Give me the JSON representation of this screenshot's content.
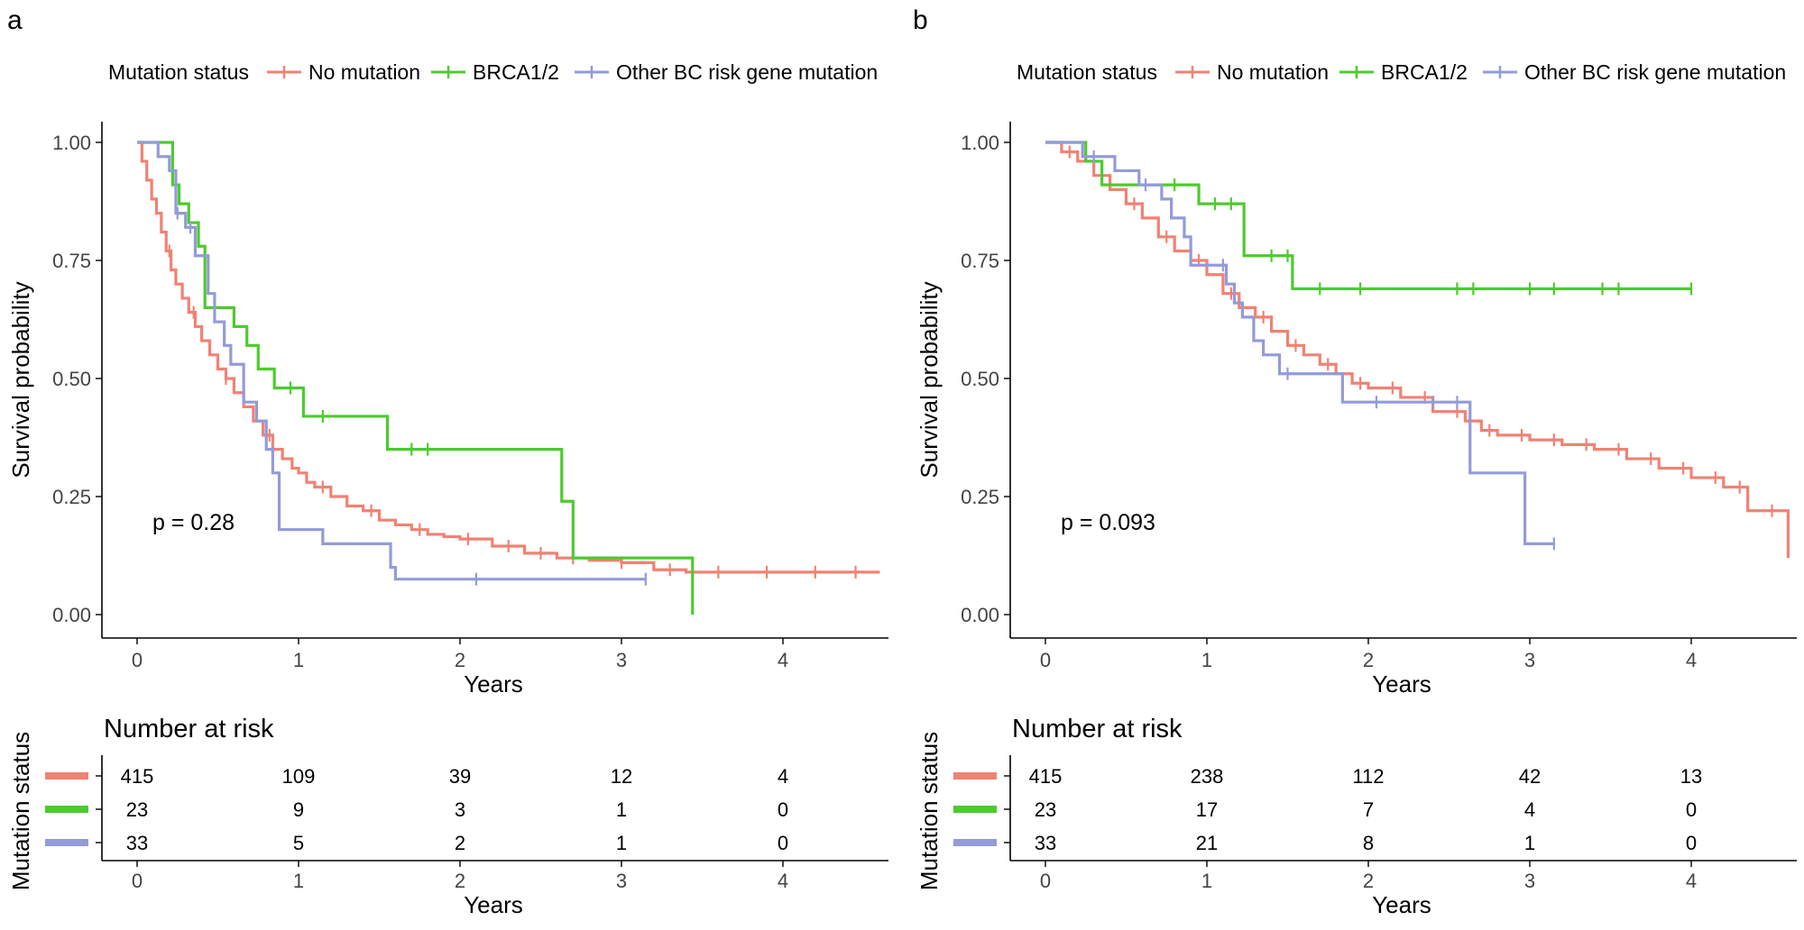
{
  "figure": {
    "panels": [
      "a",
      "b"
    ],
    "legend_title": "Mutation status",
    "series_labels": [
      "No mutation",
      "BRCA1/2",
      "Other BC risk gene mutation"
    ],
    "series_colors": [
      "#F08273",
      "#4CCB2E",
      "#939BD9"
    ]
  },
  "chart_data": [
    {
      "panel": "a",
      "type": "line",
      "subtype": "kaplan-meier",
      "title": "",
      "xlabel": "Years",
      "ylabel": "Survival probability",
      "xlim": [
        0,
        4.6
      ],
      "ylim": [
        0,
        1
      ],
      "xticks": [
        "0",
        "1",
        "2",
        "3",
        "4"
      ],
      "yticks": [
        "0.00",
        "0.25",
        "0.50",
        "0.75",
        "1.00"
      ],
      "pvalue": "p = 0.28",
      "series": [
        {
          "name": "No mutation",
          "x": [
            0,
            0.03,
            0.06,
            0.09,
            0.12,
            0.15,
            0.18,
            0.21,
            0.24,
            0.28,
            0.32,
            0.36,
            0.4,
            0.45,
            0.5,
            0.55,
            0.6,
            0.66,
            0.72,
            0.78,
            0.84,
            0.9,
            0.96,
            1.0,
            1.05,
            1.1,
            1.2,
            1.3,
            1.4,
            1.5,
            1.6,
            1.7,
            1.8,
            1.9,
            2.0,
            2.2,
            2.4,
            2.6,
            2.8,
            3.0,
            3.2,
            3.4,
            4.6
          ],
          "y": [
            1.0,
            0.96,
            0.92,
            0.88,
            0.85,
            0.81,
            0.77,
            0.73,
            0.7,
            0.67,
            0.64,
            0.61,
            0.58,
            0.55,
            0.52,
            0.5,
            0.47,
            0.44,
            0.41,
            0.38,
            0.35,
            0.33,
            0.31,
            0.3,
            0.28,
            0.27,
            0.25,
            0.23,
            0.22,
            0.2,
            0.19,
            0.18,
            0.17,
            0.165,
            0.16,
            0.145,
            0.13,
            0.12,
            0.115,
            0.11,
            0.095,
            0.09,
            0.09
          ],
          "censor_x": [
            0.2,
            0.35,
            0.55,
            0.82,
            1.15,
            1.45,
            1.75,
            2.05,
            2.3,
            2.5,
            2.7,
            3.0,
            3.3,
            3.6,
            3.9,
            4.2,
            4.45
          ]
        },
        {
          "name": "BRCA1/2",
          "x": [
            0,
            0.22,
            0.26,
            0.32,
            0.38,
            0.42,
            0.6,
            0.68,
            0.75,
            0.85,
            1.03,
            1.55,
            2.63,
            2.7,
            3.44
          ],
          "y": [
            1.0,
            0.91,
            0.87,
            0.83,
            0.78,
            0.65,
            0.61,
            0.57,
            0.52,
            0.48,
            0.42,
            0.35,
            0.24,
            0.12,
            0.0
          ],
          "censor_x": [
            0.95,
            1.15,
            1.7,
            1.8
          ]
        },
        {
          "name": "Other BC risk gene mutation",
          "x": [
            0,
            0.13,
            0.2,
            0.24,
            0.3,
            0.36,
            0.44,
            0.48,
            0.54,
            0.58,
            0.66,
            0.74,
            0.8,
            0.84,
            0.88,
            1.15,
            1.57,
            1.6,
            3.15
          ],
          "y": [
            1.0,
            0.97,
            0.94,
            0.85,
            0.82,
            0.76,
            0.68,
            0.62,
            0.57,
            0.53,
            0.45,
            0.41,
            0.35,
            0.3,
            0.18,
            0.15,
            0.1,
            0.075,
            0.075
          ],
          "censor_x": [
            0.25,
            0.33,
            2.1,
            3.15
          ]
        }
      ],
      "risk_table": {
        "title": "Number at risk",
        "ylabel": "Mutation status",
        "xlabel": "Years",
        "time_points": [
          0,
          1,
          2,
          3,
          4
        ],
        "rows": [
          {
            "name": "No mutation",
            "values": [
              415,
              109,
              39,
              12,
              4
            ]
          },
          {
            "name": "BRCA1/2",
            "values": [
              23,
              9,
              3,
              1,
              0
            ]
          },
          {
            "name": "Other BC risk gene mutation",
            "values": [
              33,
              5,
              2,
              1,
              0
            ]
          }
        ]
      }
    },
    {
      "panel": "b",
      "type": "line",
      "subtype": "kaplan-meier",
      "title": "",
      "xlabel": "Years",
      "ylabel": "Survival probability",
      "xlim": [
        0,
        4.6
      ],
      "ylim": [
        0,
        1
      ],
      "xticks": [
        "0",
        "1",
        "2",
        "3",
        "4"
      ],
      "yticks": [
        "0.00",
        "0.25",
        "0.50",
        "0.75",
        "1.00"
      ],
      "pvalue": "p = 0.093",
      "series": [
        {
          "name": "No mutation",
          "x": [
            0,
            0.1,
            0.2,
            0.3,
            0.4,
            0.5,
            0.6,
            0.7,
            0.8,
            0.9,
            1.0,
            1.1,
            1.2,
            1.3,
            1.4,
            1.5,
            1.6,
            1.7,
            1.8,
            1.9,
            2.0,
            2.2,
            2.4,
            2.6,
            2.7,
            2.8,
            3.0,
            3.2,
            3.4,
            3.6,
            3.8,
            4.0,
            4.2,
            4.35,
            4.5,
            4.6
          ],
          "y": [
            1.0,
            0.98,
            0.96,
            0.93,
            0.9,
            0.87,
            0.84,
            0.8,
            0.77,
            0.75,
            0.72,
            0.68,
            0.65,
            0.63,
            0.6,
            0.57,
            0.55,
            0.53,
            0.51,
            0.49,
            0.48,
            0.46,
            0.43,
            0.41,
            0.39,
            0.38,
            0.37,
            0.36,
            0.35,
            0.33,
            0.31,
            0.29,
            0.27,
            0.22,
            0.22,
            0.12
          ],
          "censor_x": [
            0.15,
            0.35,
            0.55,
            0.75,
            0.95,
            1.15,
            1.35,
            1.55,
            1.75,
            1.95,
            2.15,
            2.35,
            2.55,
            2.75,
            2.95,
            3.15,
            3.35,
            3.55,
            3.75,
            3.95,
            4.15,
            4.3,
            4.5
          ]
        },
        {
          "name": "BRCA1/2",
          "x": [
            0,
            0.25,
            0.35,
            0.95,
            1.23,
            1.53,
            4.0
          ],
          "y": [
            1.0,
            0.96,
            0.91,
            0.87,
            0.76,
            0.69,
            0.69
          ],
          "censor_x": [
            0.8,
            1.05,
            1.15,
            1.4,
            1.5,
            1.7,
            1.95,
            2.55,
            2.65,
            3.0,
            3.15,
            3.45,
            3.55,
            4.0
          ]
        },
        {
          "name": "Other BC risk gene mutation",
          "x": [
            0,
            0.23,
            0.43,
            0.58,
            0.72,
            0.78,
            0.86,
            0.9,
            1.12,
            1.17,
            1.22,
            1.29,
            1.35,
            1.45,
            1.84,
            2.63,
            2.97,
            3.15
          ],
          "y": [
            1.0,
            0.97,
            0.94,
            0.91,
            0.88,
            0.84,
            0.8,
            0.74,
            0.7,
            0.66,
            0.63,
            0.58,
            0.55,
            0.51,
            0.45,
            0.3,
            0.15,
            0.15
          ],
          "censor_x": [
            0.3,
            0.62,
            1.1,
            1.5,
            2.05,
            2.4,
            2.55,
            3.15
          ]
        }
      ],
      "risk_table": {
        "title": "Number at risk",
        "ylabel": "Mutation status",
        "xlabel": "Years",
        "time_points": [
          0,
          1,
          2,
          3,
          4
        ],
        "rows": [
          {
            "name": "No mutation",
            "values": [
              415,
              238,
              112,
              42,
              13
            ]
          },
          {
            "name": "BRCA1/2",
            "values": [
              23,
              17,
              7,
              4,
              0
            ]
          },
          {
            "name": "Other BC risk gene mutation",
            "values": [
              33,
              21,
              8,
              1,
              0
            ]
          }
        ]
      }
    }
  ]
}
